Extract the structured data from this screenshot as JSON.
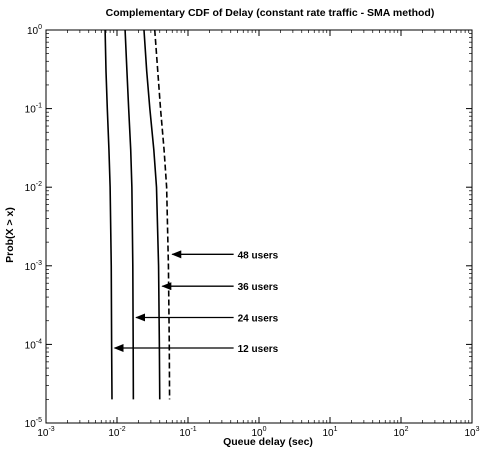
{
  "chart_data": {
    "type": "line",
    "title": "Complementary CDF of Delay (constant rate traffic - SMA method)",
    "xlabel": "Queue delay (sec)",
    "ylabel": "Prob(X > x)",
    "xscale": "log",
    "yscale": "log",
    "xlim": [
      0.001,
      1000
    ],
    "ylim": [
      1e-05,
      1
    ],
    "grid": false,
    "x_ticks": [
      {
        "value": 0.001,
        "base": "10",
        "exp": "-3"
      },
      {
        "value": 0.01,
        "base": "10",
        "exp": "-2"
      },
      {
        "value": 0.1,
        "base": "10",
        "exp": "-1"
      },
      {
        "value": 1,
        "base": "10",
        "exp": "0"
      },
      {
        "value": 10,
        "base": "10",
        "exp": "1"
      },
      {
        "value": 100,
        "base": "10",
        "exp": "2"
      },
      {
        "value": 1000,
        "base": "10",
        "exp": "3"
      }
    ],
    "y_ticks": [
      {
        "value": 1,
        "base": "10",
        "exp": "0"
      },
      {
        "value": 0.1,
        "base": "10",
        "exp": "-1"
      },
      {
        "value": 0.01,
        "base": "10",
        "exp": "-2"
      },
      {
        "value": 0.001,
        "base": "10",
        "exp": "-3"
      },
      {
        "value": 0.0001,
        "base": "10",
        "exp": "-4"
      },
      {
        "value": 1e-05,
        "base": "10",
        "exp": "-5"
      }
    ],
    "series": [
      {
        "name": "12 users",
        "dash": "",
        "points": [
          [
            0.0068,
            1
          ],
          [
            0.007,
            0.3
          ],
          [
            0.0073,
            0.1
          ],
          [
            0.0077,
            0.03
          ],
          [
            0.008,
            0.01
          ],
          [
            0.0083,
            0.001
          ],
          [
            0.0084,
            0.0001
          ],
          [
            0.0085,
            2e-05
          ]
        ]
      },
      {
        "name": "24 users",
        "dash": "",
        "points": [
          [
            0.013,
            1
          ],
          [
            0.0138,
            0.3
          ],
          [
            0.0146,
            0.1
          ],
          [
            0.0156,
            0.03
          ],
          [
            0.0162,
            0.01
          ],
          [
            0.0167,
            0.001
          ],
          [
            0.0169,
            0.0001
          ],
          [
            0.017,
            2e-05
          ]
        ]
      },
      {
        "name": "36 users",
        "dash": "",
        "points": [
          [
            0.024,
            1
          ],
          [
            0.0262,
            0.3
          ],
          [
            0.029,
            0.1
          ],
          [
            0.033,
            0.03
          ],
          [
            0.036,
            0.01
          ],
          [
            0.0385,
            0.001
          ],
          [
            0.0395,
            0.0001
          ],
          [
            0.04,
            2e-05
          ]
        ]
      },
      {
        "name": "48 users",
        "dash": "6,3",
        "points": [
          [
            0.034,
            1
          ],
          [
            0.0375,
            0.3
          ],
          [
            0.041,
            0.1
          ],
          [
            0.046,
            0.03
          ],
          [
            0.05,
            0.01
          ],
          [
            0.053,
            0.001
          ],
          [
            0.0545,
            0.0001
          ],
          [
            0.055,
            2e-05
          ]
        ]
      }
    ],
    "annotations": [
      {
        "text": "48 users",
        "text_x": 0.5,
        "text_y": 0.0014,
        "arrow_to_x": 0.0545,
        "arrow_to_y": 0.0014
      },
      {
        "text": "36 users",
        "text_x": 0.5,
        "text_y": 0.00055,
        "arrow_to_x": 0.0395,
        "arrow_to_y": 0.00055
      },
      {
        "text": "24 users",
        "text_x": 0.5,
        "text_y": 0.00022,
        "arrow_to_x": 0.0169,
        "arrow_to_y": 0.00022
      },
      {
        "text": "12 users",
        "text_x": 0.5,
        "text_y": 9e-05,
        "arrow_to_x": 0.0084,
        "arrow_to_y": 9e-05
      }
    ]
  }
}
